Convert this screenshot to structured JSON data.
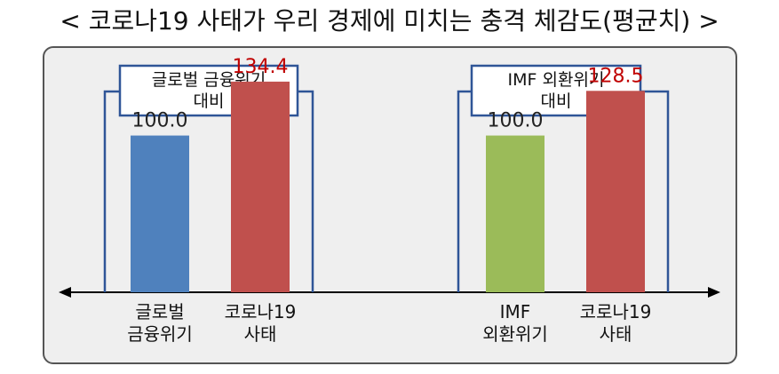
{
  "title": "< 코로나19 사태가 우리 경제에 미치는 충격 체감도(평균치) >",
  "chart_data": {
    "type": "bar",
    "title": "< 코로나19 사태가 우리 경제에 미치는 충격 체감도(평균치) >",
    "ylim": [
      0,
      140
    ],
    "grid": false,
    "groups": [
      {
        "name": [
          "글로벌 금융위기",
          "대비"
        ],
        "bars": [
          {
            "category": [
              "글로벌",
              "금융위기"
            ],
            "value": 100.0,
            "label": "100.0",
            "color": "#4f81bd",
            "label_color": "#222222"
          },
          {
            "category": [
              "코로나19",
              "사태"
            ],
            "value": 134.4,
            "label": "134.4",
            "color": "#c0504d",
            "label_color": "#c00000"
          }
        ]
      },
      {
        "name": [
          "IMF 외환위기",
          "대비"
        ],
        "bars": [
          {
            "category": [
              "IMF",
              "외환위기"
            ],
            "value": 100.0,
            "label": "100.0",
            "color": "#9bbb59",
            "label_color": "#222222"
          },
          {
            "category": [
              "코로나19",
              "사태"
            ],
            "value": 128.5,
            "label": "128.5",
            "color": "#c0504d",
            "label_color": "#c00000"
          }
        ]
      }
    ]
  },
  "colors": {
    "bracket": "#2f5597",
    "axis": "#000000",
    "panel_bg": "#efefef",
    "panel_border": "#555555"
  }
}
